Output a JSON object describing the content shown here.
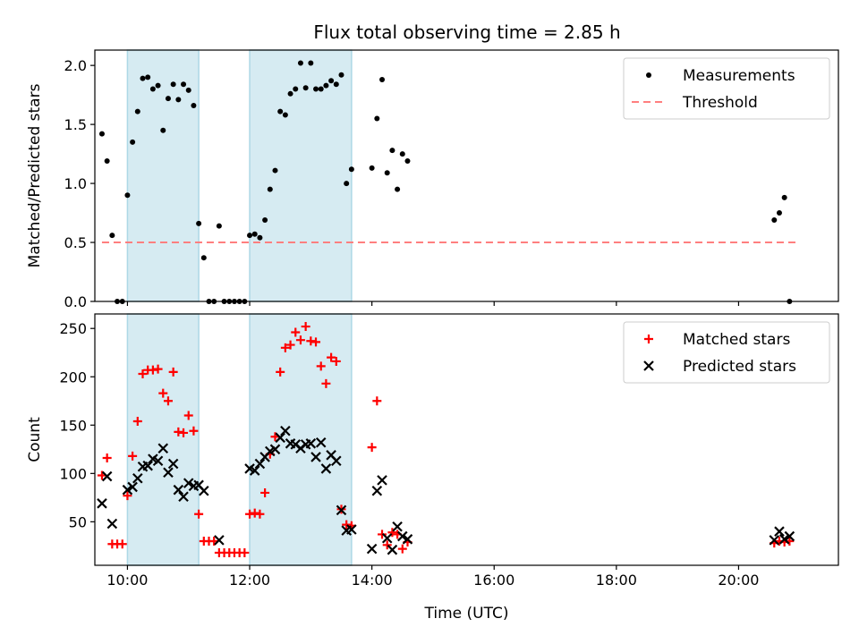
{
  "title": "Flux total observing time = 2.85 h",
  "shaded_color": "#add8e6",
  "chart_data": [
    {
      "type": "scatter",
      "ylabel": "Matched/Predicted stars",
      "xlim": [
        "09:28",
        "21:38"
      ],
      "ylim": [
        0,
        2.13
      ],
      "yticks": [
        0.0,
        0.5,
        1.0,
        1.5,
        2.0
      ],
      "ytick_labels": [
        "0.0",
        "0.5",
        "1.0",
        "1.5",
        "2.0"
      ],
      "shaded_intervals": [
        [
          "10:00",
          "11:10"
        ],
        [
          "12:00",
          "13:40"
        ]
      ],
      "legend": {
        "position": "upper right",
        "entries": [
          "Measurements",
          "Threshold"
        ]
      },
      "series": [
        {
          "name": "Measurements",
          "marker": "dot",
          "color": "#000000",
          "x": [
            "09:35",
            "09:40",
            "09:45",
            "09:50",
            "09:55",
            "10:00",
            "10:05",
            "10:10",
            "10:15",
            "10:20",
            "10:25",
            "10:30",
            "10:35",
            "10:40",
            "10:45",
            "10:50",
            "10:55",
            "11:00",
            "11:05",
            "11:10",
            "11:15",
            "11:20",
            "11:25",
            "11:30",
            "11:35",
            "11:40",
            "11:45",
            "11:50",
            "11:55",
            "12:00",
            "12:05",
            "12:10",
            "12:15",
            "12:20",
            "12:25",
            "12:30",
            "12:35",
            "12:40",
            "12:45",
            "12:50",
            "12:55",
            "13:00",
            "13:05",
            "13:10",
            "13:15",
            "13:20",
            "13:25",
            "13:30",
            "13:35",
            "13:40",
            "14:00",
            "14:05",
            "14:10",
            "14:15",
            "14:20",
            "14:25",
            "14:30",
            "14:35",
            "20:35",
            "20:40",
            "20:45",
            "20:50"
          ],
          "y": [
            1.42,
            1.19,
            0.56,
            0.0,
            0.0,
            0.9,
            1.35,
            1.61,
            1.89,
            1.9,
            1.8,
            1.83,
            1.45,
            1.72,
            1.84,
            1.71,
            1.84,
            1.79,
            1.66,
            0.66,
            0.37,
            0.0,
            0.0,
            0.64,
            0.0,
            0.0,
            0.0,
            0.0,
            0.0,
            0.56,
            0.57,
            0.54,
            0.69,
            0.95,
            1.11,
            1.61,
            1.58,
            1.76,
            1.8,
            2.02,
            1.81,
            2.02,
            1.8,
            1.8,
            1.83,
            1.87,
            1.84,
            1.92,
            1.0,
            1.12,
            1.13,
            1.55,
            1.88,
            1.09,
            1.28,
            0.95,
            1.25,
            1.19,
            0.69,
            0.75,
            0.88,
            0.0
          ]
        },
        {
          "name": "Threshold",
          "marker": "dashed-line",
          "color": "#ff7f7f",
          "x": [
            "09:35",
            "21:00"
          ],
          "y": [
            0.5,
            0.5
          ]
        }
      ]
    },
    {
      "type": "scatter",
      "xlabel": "Time (UTC)",
      "ylabel": "Count",
      "xlim": [
        "09:28",
        "21:38"
      ],
      "ylim": [
        5,
        265
      ],
      "xtick_labels": [
        "10:00",
        "12:00",
        "14:00",
        "16:00",
        "18:00",
        "20:00"
      ],
      "yticks": [
        50,
        100,
        150,
        200,
        250
      ],
      "ytick_labels": [
        "50",
        "100",
        "150",
        "200",
        "250"
      ],
      "shaded_intervals": [
        [
          "10:00",
          "11:10"
        ],
        [
          "12:00",
          "13:40"
        ]
      ],
      "legend": {
        "position": "upper right",
        "entries": [
          "Matched stars",
          "Predicted stars"
        ]
      },
      "series": [
        {
          "name": "Matched stars",
          "marker": "plus",
          "color": "#ff0000",
          "x": [
            "09:35",
            "09:40",
            "09:45",
            "09:50",
            "09:55",
            "10:00",
            "10:05",
            "10:10",
            "10:15",
            "10:20",
            "10:25",
            "10:30",
            "10:35",
            "10:40",
            "10:45",
            "10:50",
            "10:55",
            "11:00",
            "11:05",
            "11:10",
            "11:15",
            "11:20",
            "11:25",
            "11:30",
            "11:35",
            "11:40",
            "11:45",
            "11:50",
            "11:55",
            "12:00",
            "12:05",
            "12:10",
            "12:15",
            "12:20",
            "12:25",
            "12:30",
            "12:35",
            "12:40",
            "12:45",
            "12:50",
            "12:55",
            "13:00",
            "13:05",
            "13:10",
            "13:15",
            "13:20",
            "13:25",
            "13:30",
            "13:35",
            "13:40",
            "14:00",
            "14:05",
            "14:10",
            "14:15",
            "14:20",
            "14:25",
            "14:30",
            "14:35",
            "20:35",
            "20:40",
            "20:45",
            "20:50"
          ],
          "y": [
            98,
            116,
            27,
            27,
            27,
            77,
            118,
            154,
            203,
            207,
            207,
            208,
            183,
            175,
            205,
            143,
            142,
            160,
            144,
            58,
            30,
            30,
            30,
            18,
            18,
            18,
            18,
            18,
            18,
            58,
            59,
            58,
            80,
            120,
            138,
            205,
            230,
            233,
            246,
            238,
            252,
            237,
            236,
            211,
            193,
            220,
            216,
            63,
            47,
            46,
            127,
            175,
            37,
            26,
            39,
            37,
            22,
            29,
            28,
            30,
            29,
            30
          ],
          "note": "values read approximately from plot"
        },
        {
          "name": "Predicted stars",
          "marker": "x",
          "color": "#000000",
          "x": [
            "09:35",
            "09:40",
            "09:45",
            "10:00",
            "10:05",
            "10:10",
            "10:15",
            "10:20",
            "10:25",
            "10:30",
            "10:35",
            "10:40",
            "10:45",
            "10:50",
            "10:55",
            "11:00",
            "11:05",
            "11:10",
            "11:15",
            "11:30",
            "12:00",
            "12:05",
            "12:10",
            "12:15",
            "12:20",
            "12:25",
            "12:30",
            "12:35",
            "12:40",
            "12:45",
            "12:50",
            "12:55",
            "13:00",
            "13:05",
            "13:10",
            "13:15",
            "13:20",
            "13:25",
            "13:30",
            "13:35",
            "13:40",
            "14:00",
            "14:05",
            "14:10",
            "14:15",
            "14:20",
            "14:25",
            "14:30",
            "14:35",
            "20:35",
            "20:40",
            "20:45",
            "20:50"
          ],
          "y": [
            69,
            97,
            48,
            83,
            86,
            95,
            107,
            108,
            115,
            113,
            126,
            101,
            110,
            83,
            76,
            90,
            87,
            88,
            82,
            31,
            105,
            103,
            110,
            117,
            123,
            125,
            137,
            144,
            131,
            130,
            126,
            130,
            131,
            117,
            132,
            105,
            119,
            113,
            62,
            41,
            42,
            22,
            82,
            93,
            33,
            21,
            45,
            35,
            32,
            31,
            40,
            32,
            35
          ]
        }
      ]
    }
  ]
}
